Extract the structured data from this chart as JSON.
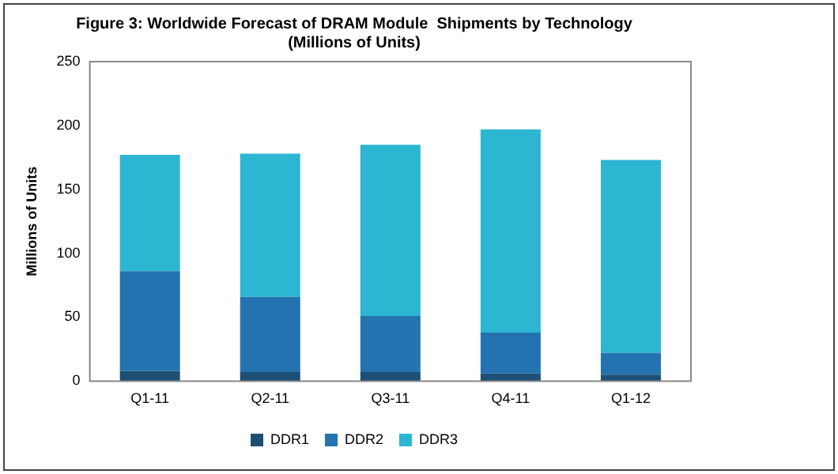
{
  "chart_data": {
    "type": "bar",
    "stacked": true,
    "title": [
      "Figure 3: Worldwide Forecast of DRAM Module  Shipments by Technology",
      "(Millions of Units)"
    ],
    "ylabel": "Millions of Units",
    "categories": [
      "Q1-11",
      "Q2-11",
      "Q3-11",
      "Q4-11",
      "Q1-12"
    ],
    "series": [
      {
        "name": "DDR1",
        "color": "#1c4f73",
        "values": [
          8,
          7,
          7,
          6,
          5
        ]
      },
      {
        "name": "DDR2",
        "color": "#2473b0",
        "values": [
          78,
          59,
          44,
          32,
          17
        ]
      },
      {
        "name": "DDR3",
        "color": "#2db6d1",
        "values": [
          91,
          112,
          134,
          159,
          151
        ]
      }
    ],
    "ylim": [
      0,
      250
    ],
    "yticks": [
      0,
      50,
      100,
      150,
      200,
      250
    ],
    "grid": false,
    "legend": "bottom"
  }
}
